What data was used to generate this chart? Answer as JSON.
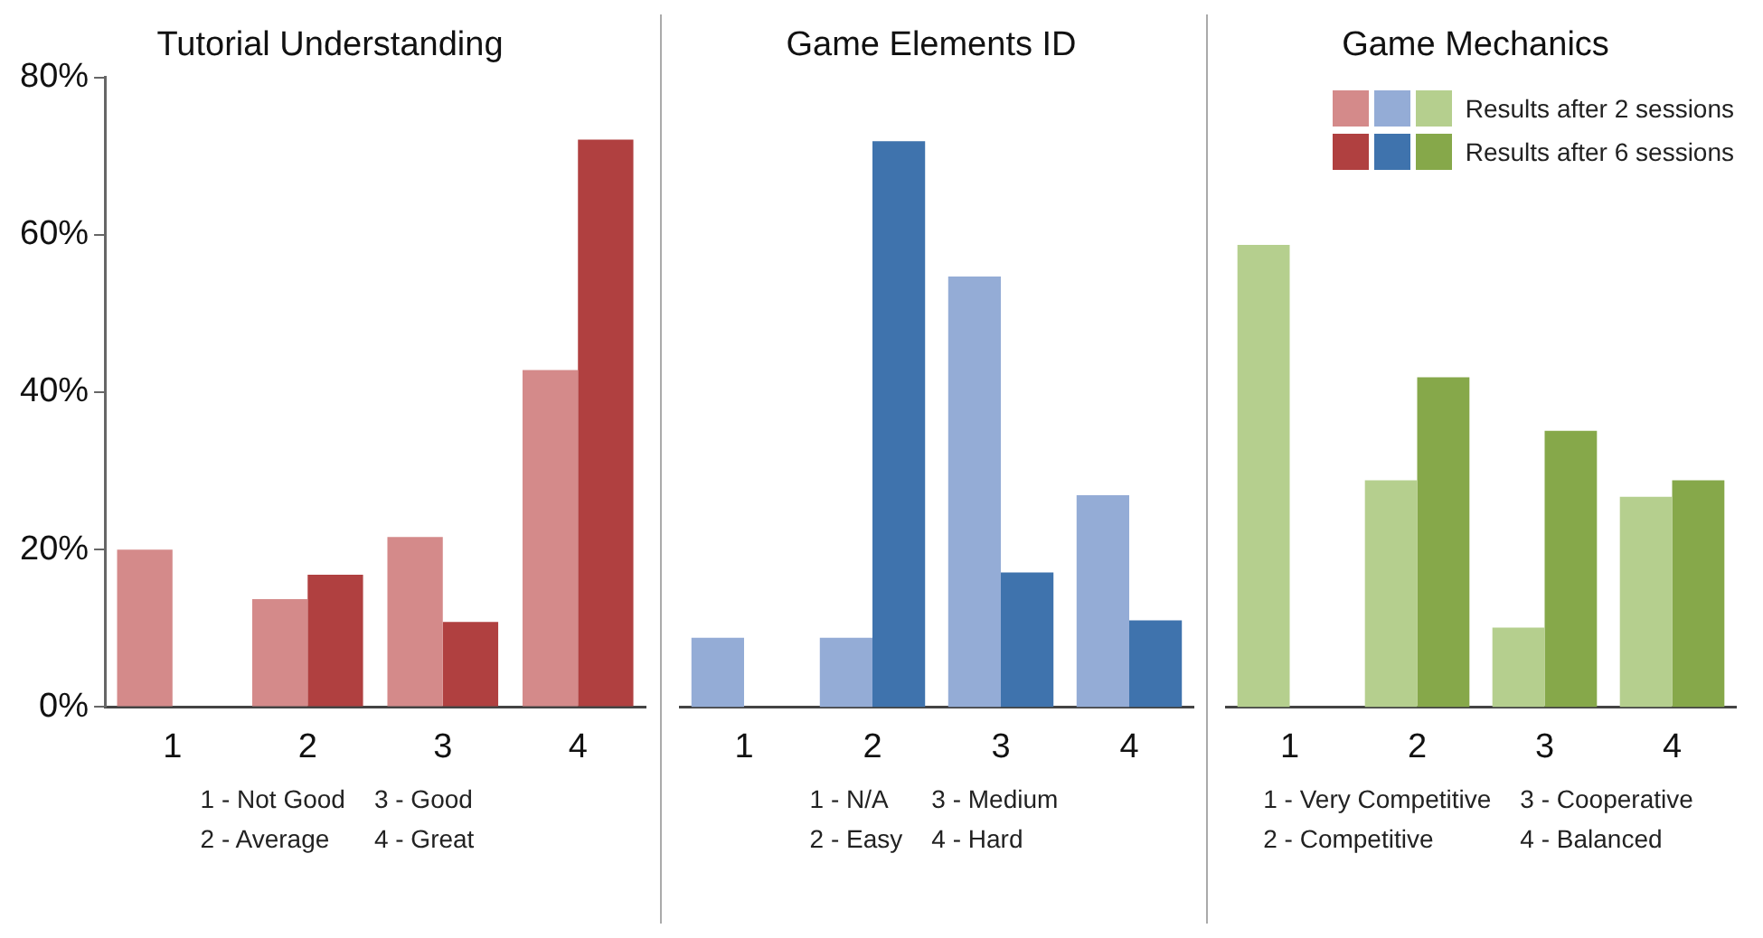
{
  "chart_data": [
    {
      "type": "bar",
      "title": "Tutorial Understanding",
      "categories": [
        "1",
        "2",
        "3",
        "4"
      ],
      "series": [
        {
          "color": "#d48a8a",
          "values": [
            20,
            13.7,
            21.6,
            42.8
          ]
        },
        {
          "color": "#b04040",
          "values": [
            0,
            16.8,
            10.8,
            72.1
          ]
        }
      ],
      "ylim": [
        0,
        80
      ],
      "yticks": [
        {
          "value": 0,
          "label": "0%"
        },
        {
          "value": 20,
          "label": "20%"
        },
        {
          "value": 40,
          "label": "40%"
        },
        {
          "value": 60,
          "label": "60%"
        },
        {
          "value": 80,
          "label": "80%"
        }
      ],
      "annotations": [
        "1 - Not Good",
        "2 - Average",
        "3 - Good",
        "4 - Great"
      ]
    },
    {
      "type": "bar",
      "title": "Game Elements ID",
      "categories": [
        "1",
        "2",
        "3",
        "4"
      ],
      "series": [
        {
          "color": "#94acd6",
          "values": [
            8.8,
            8.8,
            54.7,
            26.9
          ]
        },
        {
          "color": "#3f73ad",
          "values": [
            0,
            71.9,
            17.1,
            11
          ]
        }
      ],
      "ylim": [
        0,
        80
      ],
      "tick_labels": "x",
      "annotations": [
        "1 - N/A",
        "2 - Easy",
        "3 - Medium",
        "4 - Hard"
      ]
    },
    {
      "type": "bar",
      "title": "Game Mechanics",
      "categories": [
        "1",
        "2",
        "3",
        "4"
      ],
      "series": [
        {
          "name": "Results after 2 sessions",
          "color": "#b5cf8e",
          "values": [
            58.7,
            28.8,
            10.1,
            26.7
          ]
        },
        {
          "name": "Results after 6 sessions",
          "color": "#86a84a",
          "values": [
            0,
            41.9,
            35.1,
            28.8
          ]
        }
      ],
      "ylim": [
        0,
        80
      ],
      "tick_labels": "x",
      "legend": "top right",
      "annotations": [
        "1 - Very Competitive",
        "2 - Competitive",
        "3 - Cooperative",
        "4 - Balanced"
      ]
    }
  ]
}
